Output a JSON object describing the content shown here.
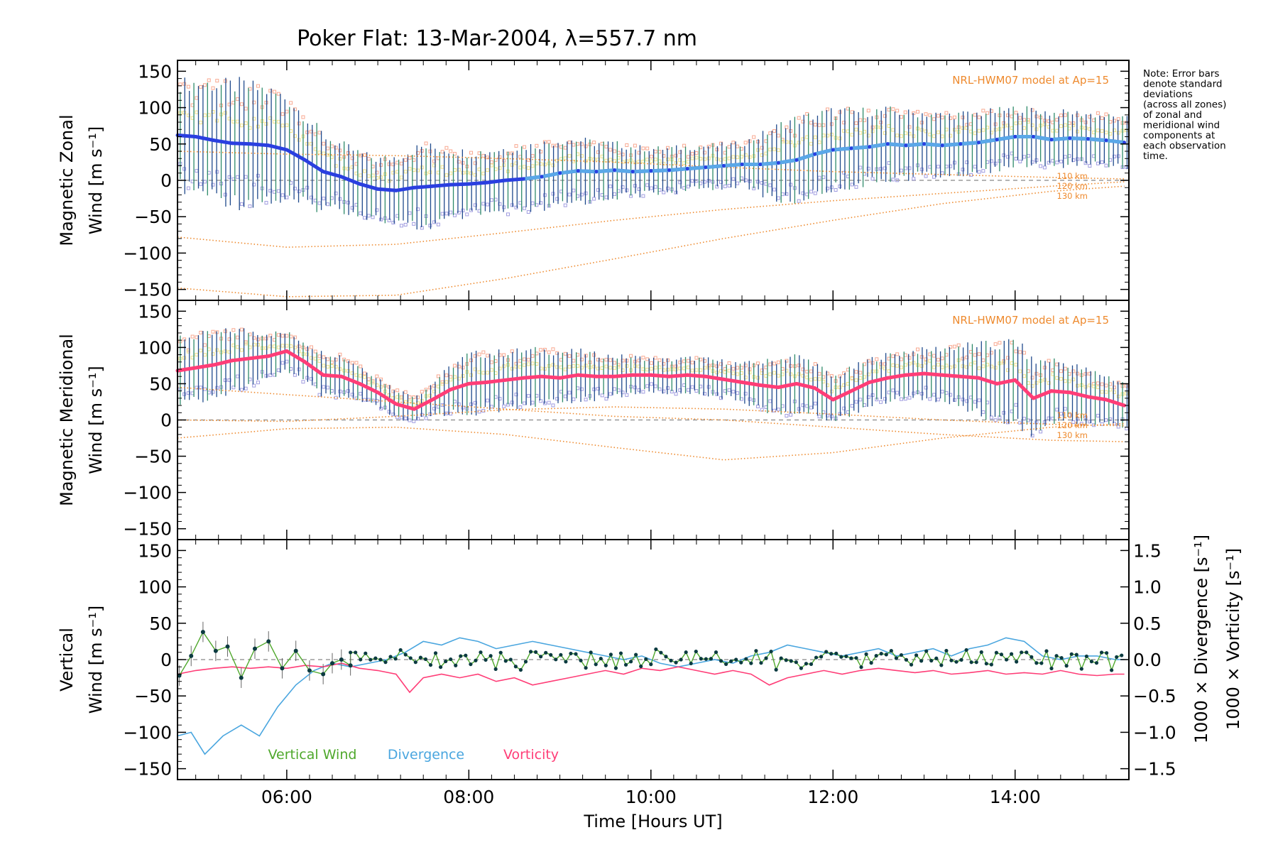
{
  "colors": {
    "axis": "#000000",
    "zonal": "#2a3fe0",
    "zonal_light": "#5aa8e8",
    "meridional": "#ff3d77",
    "errorbar": "#1f4a8c",
    "errorbar_alt": "#2e8a6a",
    "model": "#ee8a2e",
    "scatter_purple": "#a09ce0",
    "scatter_salmon": "#f8a890",
    "scatter_yellow": "#f0e28a",
    "vertical": "#4fa82c",
    "vertical_pts": "#0b3a40",
    "divergence": "#4aa6df",
    "vorticity": "#ff3d77",
    "zero_line": "#888888"
  },
  "chart_data": {
    "type": "line",
    "title": "Poker Flat: 13-Mar-2004, λ=557.7 nm",
    "xlabel": "Time [Hours UT]",
    "xlim": [
      4.8,
      15.25
    ],
    "xticks": [
      6,
      8,
      10,
      12,
      14
    ],
    "xtick_labels": [
      "06:00",
      "08:00",
      "10:00",
      "12:00",
      "14:00"
    ],
    "note_lines": [
      "Note: Error bars",
      "denote standard",
      "deviations",
      "(across all zones)",
      "of zonal and",
      "meridional wind",
      "components at",
      "each observation",
      "time."
    ],
    "panels": [
      {
        "id": "zonal",
        "ylabel_lines": [
          "Magnetic Zonal",
          "Wind [m s⁻¹]"
        ],
        "ylim": [
          -165,
          165
        ],
        "yticks": [
          150,
          100,
          50,
          0,
          -50,
          -100,
          -150
        ],
        "ytick_labels": [
          "150",
          "100",
          "50",
          "0",
          "−50",
          "−100",
          "−150"
        ],
        "model_label": "NRL-HWM07 model at Ap=15",
        "altitude_labels": [
          "110 km",
          "120 km",
          "130 km"
        ],
        "mean_series": {
          "name": "Magnetic Zonal Wind",
          "x": [
            4.8,
            5.0,
            5.2,
            5.4,
            5.6,
            5.8,
            6.0,
            6.2,
            6.4,
            6.6,
            6.8,
            7.0,
            7.2,
            7.4,
            7.6,
            7.8,
            8.0,
            8.2,
            8.4,
            8.6,
            8.8,
            9.0,
            9.2,
            9.4,
            9.6,
            9.8,
            10.0,
            10.2,
            10.4,
            10.6,
            10.8,
            11.0,
            11.2,
            11.4,
            11.6,
            11.8,
            12.0,
            12.2,
            12.4,
            12.6,
            12.8,
            13.0,
            13.2,
            13.4,
            13.6,
            13.8,
            14.0,
            14.2,
            14.4,
            14.6,
            14.8,
            15.0,
            15.2
          ],
          "y": [
            62,
            60,
            55,
            51,
            50,
            48,
            42,
            28,
            12,
            5,
            -5,
            -12,
            -14,
            -10,
            -8,
            -6,
            -5,
            -3,
            0,
            2,
            5,
            10,
            13,
            12,
            14,
            12,
            13,
            14,
            16,
            18,
            20,
            22,
            22,
            24,
            28,
            36,
            42,
            44,
            46,
            50,
            48,
            50,
            48,
            50,
            52,
            56,
            60,
            60,
            56,
            58,
            57,
            55,
            52
          ]
        },
        "spread_series": {
          "name": "Standard deviation (error bar half-width)",
          "x": [
            4.8,
            5.5,
            6.0,
            6.5,
            7.0,
            7.5,
            8.0,
            9.0,
            10.0,
            11.0,
            11.5,
            12.0,
            13.0,
            14.0,
            15.2
          ],
          "y": [
            70,
            80,
            70,
            45,
            40,
            55,
            42,
            45,
            30,
            28,
            55,
            52,
            42,
            38,
            32
          ]
        },
        "model_series": [
          {
            "name": "110 km",
            "x": [
              4.8,
              6.0,
              7.2,
              8.4,
              9.6,
              10.8,
              12.0,
              13.2,
              14.4,
              15.2
            ],
            "y": [
              40,
              36,
              34,
              30,
              25,
              18,
              12,
              8,
              4,
              2
            ]
          },
          {
            "name": "120 km",
            "x": [
              4.8,
              6.0,
              7.2,
              8.4,
              9.6,
              10.8,
              12.0,
              13.2,
              14.4,
              15.2
            ],
            "y": [
              -78,
              -92,
              -88,
              -72,
              -55,
              -40,
              -28,
              -18,
              -8,
              -2
            ]
          },
          {
            "name": "130 km",
            "x": [
              4.8,
              6.0,
              7.2,
              8.4,
              9.6,
              10.8,
              12.0,
              13.2,
              14.4,
              15.2
            ],
            "y": [
              -148,
              -160,
              -158,
              -135,
              -108,
              -80,
              -55,
              -32,
              -15,
              -8
            ]
          }
        ]
      },
      {
        "id": "meridional",
        "ylabel_lines": [
          "Magnetic Meridional",
          "Wind [m s⁻¹]"
        ],
        "ylim": [
          -165,
          165
        ],
        "yticks": [
          150,
          100,
          50,
          0,
          -50,
          -100,
          -150
        ],
        "ytick_labels": [
          "150",
          "100",
          "50",
          "0",
          "−50",
          "−100",
          "−150"
        ],
        "model_label": "NRL-HWM07 model at Ap=15",
        "altitude_labels": [
          "110 km",
          "120 km",
          "130 km"
        ],
        "mean_series": {
          "name": "Magnetic Meridional Wind",
          "x": [
            4.8,
            5.0,
            5.2,
            5.4,
            5.6,
            5.8,
            6.0,
            6.2,
            6.4,
            6.6,
            6.8,
            7.0,
            7.2,
            7.4,
            7.6,
            7.8,
            8.0,
            8.2,
            8.4,
            8.6,
            8.8,
            9.0,
            9.2,
            9.4,
            9.6,
            9.8,
            10.0,
            10.2,
            10.4,
            10.6,
            10.8,
            11.0,
            11.2,
            11.4,
            11.6,
            11.8,
            12.0,
            12.2,
            12.4,
            12.6,
            12.8,
            13.0,
            13.2,
            13.4,
            13.6,
            13.8,
            14.0,
            14.2,
            14.4,
            14.6,
            14.8,
            15.0,
            15.2
          ],
          "y": [
            68,
            72,
            76,
            82,
            85,
            88,
            95,
            80,
            62,
            60,
            50,
            38,
            22,
            15,
            28,
            42,
            50,
            52,
            55,
            58,
            60,
            58,
            62,
            60,
            60,
            62,
            62,
            60,
            62,
            60,
            56,
            52,
            48,
            45,
            50,
            44,
            28,
            40,
            52,
            58,
            62,
            64,
            62,
            60,
            58,
            50,
            55,
            30,
            40,
            38,
            32,
            28,
            20
          ]
        },
        "spread_series": {
          "name": "Standard deviation (error bar half-width)",
          "x": [
            4.8,
            5.5,
            6.0,
            6.5,
            7.0,
            7.5,
            8.0,
            9.0,
            10.0,
            11.0,
            11.5,
            12.0,
            13.0,
            14.0,
            14.5,
            15.2
          ],
          "y": [
            45,
            40,
            25,
            30,
            20,
            18,
            40,
            35,
            22,
            25,
            40,
            30,
            32,
            55,
            40,
            30
          ]
        },
        "model_series": [
          {
            "name": "110 km",
            "x": [
              4.8,
              6.0,
              7.2,
              8.4,
              9.6,
              10.8,
              12.0,
              13.2,
              14.4,
              15.2
            ],
            "y": [
              0,
              -2,
              5,
              14,
              18,
              15,
              8,
              0,
              -6,
              -8
            ]
          },
          {
            "name": "120 km",
            "x": [
              4.8,
              6.0,
              7.2,
              8.4,
              9.6,
              10.8,
              12.0,
              13.2,
              14.4,
              15.2
            ],
            "y": [
              -25,
              -12,
              -10,
              -20,
              -38,
              -55,
              -45,
              -25,
              -10,
              -5
            ]
          },
          {
            "name": "130 km",
            "x": [
              4.8,
              6.0,
              7.2,
              8.4,
              9.6,
              10.8,
              12.0,
              13.2,
              14.4,
              15.2
            ],
            "y": [
              45,
              35,
              25,
              15,
              5,
              0,
              -10,
              -20,
              -28,
              -30
            ]
          }
        ]
      },
      {
        "id": "vertical",
        "ylabel_lines": [
          "Vertical",
          "Wind [m s⁻¹]"
        ],
        "ylim": [
          -165,
          165
        ],
        "yticks": [
          150,
          100,
          50,
          0,
          -50,
          -100,
          -150
        ],
        "ytick_labels": [
          "150",
          "100",
          "50",
          "0",
          "−50",
          "−100",
          "−150"
        ],
        "right_axis": {
          "ylim": [
            -1.65,
            1.65
          ],
          "yticks": [
            1.5,
            1.0,
            0.5,
            0.0,
            -0.5,
            -1.0,
            -1.5
          ],
          "ytick_labels": [
            "1.5",
            "1.0",
            "0.5",
            "0.0",
            "−0.5",
            "−1.0",
            "−1.5"
          ],
          "label_divergence": "1000 × Divergence [s⁻¹]",
          "label_vorticity": "1000 × Vorticity [s⁻¹]"
        },
        "legend": [
          "Vertical Wind",
          "Divergence",
          "Vorticity"
        ],
        "vertical_series": {
          "name": "Vertical Wind",
          "x": [
            4.82,
            4.95,
            5.08,
            5.22,
            5.35,
            5.5,
            5.65,
            5.8,
            5.95,
            6.1,
            6.25,
            6.4,
            6.5,
            6.6,
            6.7
          ],
          "y": [
            -22,
            5,
            38,
            12,
            18,
            -25,
            15,
            25,
            -12,
            12,
            -15,
            -20,
            -5,
            0,
            -8
          ]
        },
        "divergence_series": {
          "name": "Divergence (right axis)",
          "x": [
            4.8,
            4.95,
            5.1,
            5.3,
            5.5,
            5.7,
            5.9,
            6.1,
            6.3,
            6.5,
            6.7,
            6.9,
            7.1,
            7.3,
            7.5,
            7.7,
            7.9,
            8.1,
            8.3,
            8.5,
            8.7,
            8.9,
            9.1,
            9.3,
            9.5,
            9.7,
            9.9,
            10.1,
            10.3,
            10.5,
            10.7,
            10.9,
            11.1,
            11.3,
            11.5,
            11.7,
            11.9,
            12.1,
            12.3,
            12.5,
            12.7,
            12.9,
            13.1,
            13.3,
            13.5,
            13.7,
            13.9,
            14.1,
            14.3,
            14.5,
            14.7,
            14.9,
            15.1,
            15.2
          ],
          "y": [
            -1.05,
            -1.0,
            -1.3,
            -1.05,
            -0.9,
            -1.05,
            -0.65,
            -0.35,
            -0.15,
            -0.05,
            -0.1,
            -0.05,
            0.0,
            0.1,
            0.25,
            0.2,
            0.3,
            0.25,
            0.15,
            0.2,
            0.25,
            0.2,
            0.15,
            0.1,
            0.05,
            0.0,
            0.05,
            -0.05,
            -0.1,
            -0.05,
            0.0,
            -0.05,
            0.05,
            0.1,
            0.2,
            0.15,
            0.1,
            0.05,
            0.1,
            0.15,
            0.05,
            0.1,
            0.15,
            0.05,
            0.15,
            0.2,
            0.3,
            0.25,
            0.05,
            0.0,
            0.05,
            0.05,
            0.0,
            0.0
          ]
        },
        "vorticity_series": {
          "name": "Vorticity (right axis)",
          "x": [
            4.8,
            5.0,
            5.2,
            5.4,
            5.6,
            5.8,
            6.0,
            6.2,
            6.4,
            6.6,
            6.8,
            7.0,
            7.2,
            7.35,
            7.5,
            7.7,
            7.9,
            8.1,
            8.3,
            8.5,
            8.7,
            8.9,
            9.1,
            9.3,
            9.5,
            9.7,
            9.9,
            10.1,
            10.3,
            10.5,
            10.7,
            10.9,
            11.1,
            11.3,
            11.5,
            11.7,
            11.9,
            12.1,
            12.3,
            12.5,
            12.7,
            12.9,
            13.1,
            13.3,
            13.5,
            13.7,
            13.9,
            14.1,
            14.3,
            14.5,
            14.7,
            14.9,
            15.1,
            15.2
          ],
          "y": [
            -0.2,
            -0.15,
            -0.12,
            -0.1,
            -0.12,
            -0.1,
            -0.12,
            -0.08,
            -0.1,
            -0.05,
            -0.12,
            -0.15,
            -0.2,
            -0.45,
            -0.25,
            -0.2,
            -0.25,
            -0.2,
            -0.3,
            -0.25,
            -0.35,
            -0.3,
            -0.25,
            -0.2,
            -0.15,
            -0.2,
            -0.12,
            -0.15,
            -0.1,
            -0.15,
            -0.2,
            -0.15,
            -0.2,
            -0.35,
            -0.25,
            -0.2,
            -0.15,
            -0.2,
            -0.15,
            -0.12,
            -0.15,
            -0.18,
            -0.15,
            -0.2,
            -0.18,
            -0.15,
            -0.2,
            -0.18,
            -0.2,
            -0.15,
            -0.2,
            -0.22,
            -0.2,
            -0.2
          ]
        }
      }
    ]
  }
}
